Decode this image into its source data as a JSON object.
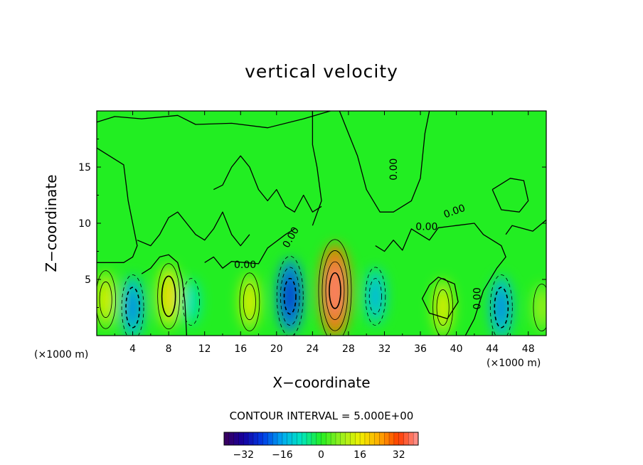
{
  "chart_data": {
    "type": "heatmap",
    "title": "vertical velocity",
    "xlabel": "X−coordinate",
    "ylabel": "Z−coordinate",
    "x_unit": "(×1000 m)",
    "x_ticks": [
      "4",
      "8",
      "12",
      "16",
      "20",
      "24",
      "28",
      "32",
      "36",
      "40",
      "44",
      "48"
    ],
    "y_ticks": [
      "5",
      "10",
      "15"
    ],
    "xlim": [
      0,
      50
    ],
    "ylim": [
      0,
      20
    ],
    "contour_interval_text": "CONTOUR INTERVAL = 5.000E+00",
    "contour_labels": [
      "0.00",
      "0.00",
      "0.00",
      "0.00",
      "0.00",
      "0.00"
    ],
    "colorbar": {
      "ticks": [
        "−32",
        "−16",
        "0",
        "16",
        "32"
      ],
      "range": [
        -40,
        40
      ]
    },
    "features": [
      {
        "kind": "updraft",
        "x": 1.0,
        "z": 3.2,
        "value": 8
      },
      {
        "kind": "downdraft",
        "x": 4.0,
        "z": 2.5,
        "value": -10
      },
      {
        "kind": "updraft",
        "x": 8.0,
        "z": 3.5,
        "value": 10
      },
      {
        "kind": "downdraft",
        "x": 10.5,
        "z": 3.0,
        "value": -5
      },
      {
        "kind": "updraft",
        "x": 17.0,
        "z": 3.0,
        "value": 8
      },
      {
        "kind": "downdraft",
        "x": 21.5,
        "z": 3.5,
        "value": -14
      },
      {
        "kind": "updraft",
        "x": 26.5,
        "z": 4.0,
        "value": 20
      },
      {
        "kind": "downdraft",
        "x": 31.0,
        "z": 3.5,
        "value": -8
      },
      {
        "kind": "updraft",
        "x": 38.5,
        "z": 2.5,
        "value": 8
      },
      {
        "kind": "downdraft",
        "x": 45.0,
        "z": 2.5,
        "value": -10
      },
      {
        "kind": "updraft",
        "x": 49.5,
        "z": 2.5,
        "value": 5
      }
    ]
  },
  "colors": {
    "background_field": "#22ee22",
    "axis": "#000000",
    "contour": "#000000"
  }
}
